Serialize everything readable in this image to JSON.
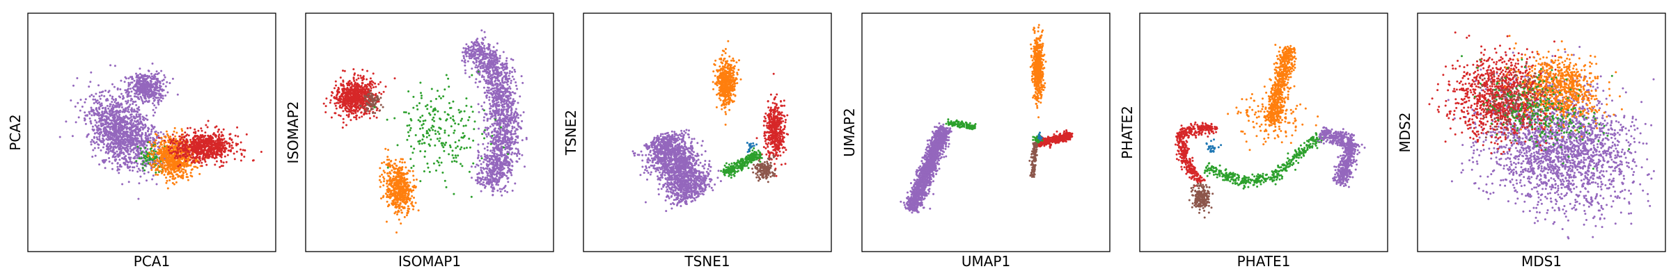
{
  "figure": {
    "colors": {
      "purple": "#9467bd",
      "orange": "#ff7f0e",
      "red": "#d62728",
      "green": "#2ca02c",
      "brown": "#8c564b",
      "blue": "#1f77b4"
    }
  },
  "chart_data": [
    {
      "type": "scatter",
      "xlabel": "PCA1",
      "ylabel": "PCA2",
      "grid": false,
      "ticks": "none",
      "clusters": [
        {
          "color": "purple",
          "shape": "blob",
          "cx": -0.28,
          "cy": 0.0,
          "rx": 0.26,
          "ry": 0.42,
          "angle": 35,
          "n": 1300
        },
        {
          "color": "purple",
          "shape": "blob",
          "cx": -0.05,
          "cy": 0.45,
          "rx": 0.18,
          "ry": 0.16,
          "angle": 0,
          "n": 450
        },
        {
          "color": "green",
          "shape": "blob",
          "cx": 0.0,
          "cy": -0.25,
          "rx": 0.1,
          "ry": 0.12,
          "angle": 0,
          "n": 80
        },
        {
          "color": "orange",
          "shape": "blob",
          "cx": 0.22,
          "cy": -0.25,
          "rx": 0.2,
          "ry": 0.2,
          "angle": 0,
          "n": 700
        },
        {
          "color": "red",
          "shape": "blob",
          "cx": 0.5,
          "cy": -0.15,
          "rx": 0.28,
          "ry": 0.14,
          "angle": 0,
          "n": 750
        }
      ]
    },
    {
      "type": "scatter",
      "xlabel": "ISOMAP1",
      "ylabel": "ISOMAP2",
      "grid": false,
      "ticks": "none",
      "clusters": [
        {
          "color": "purple",
          "shape": "path",
          "points": [
            [
              0.38,
              0.85
            ],
            [
              0.62,
              0.7
            ],
            [
              0.72,
              0.2
            ],
            [
              0.68,
              -0.3
            ],
            [
              0.55,
              -0.55
            ]
          ],
          "width": 0.14,
          "n": 1600
        },
        {
          "color": "red",
          "shape": "blob",
          "cx": -0.72,
          "cy": 0.35,
          "rx": 0.2,
          "ry": 0.18,
          "angle": 0,
          "n": 700
        },
        {
          "color": "brown",
          "shape": "blob",
          "cx": -0.55,
          "cy": 0.3,
          "rx": 0.09,
          "ry": 0.1,
          "angle": 0,
          "n": 80
        },
        {
          "color": "orange",
          "shape": "blob",
          "cx": -0.3,
          "cy": -0.55,
          "rx": 0.12,
          "ry": 0.25,
          "angle": 10,
          "n": 550
        },
        {
          "color": "green",
          "shape": "blob",
          "cx": 0.1,
          "cy": 0.0,
          "rx": 0.45,
          "ry": 0.45,
          "angle": 0,
          "n": 220
        }
      ]
    },
    {
      "type": "scatter",
      "xlabel": "TSNE1",
      "ylabel": "TSNE2",
      "grid": false,
      "ticks": "none",
      "clusters": [
        {
          "color": "purple",
          "shape": "path",
          "points": [
            [
              -0.45,
              -0.05
            ],
            [
              -0.3,
              -0.35
            ],
            [
              -0.1,
              -0.62
            ]
          ],
          "width": 0.2,
          "n": 1600
        },
        {
          "color": "orange",
          "shape": "blob",
          "cx": 0.18,
          "cy": 0.5,
          "rx": 0.09,
          "ry": 0.22,
          "angle": 0,
          "n": 550
        },
        {
          "color": "red",
          "shape": "blob",
          "cx": 0.65,
          "cy": 0.02,
          "rx": 0.09,
          "ry": 0.28,
          "angle": 0,
          "n": 450
        },
        {
          "color": "brown",
          "shape": "blob",
          "cx": 0.55,
          "cy": -0.37,
          "rx": 0.09,
          "ry": 0.1,
          "angle": 0,
          "n": 150
        },
        {
          "color": "green",
          "shape": "path",
          "points": [
            [
              0.15,
              -0.4
            ],
            [
              0.3,
              -0.35
            ],
            [
              0.5,
              -0.2
            ]
          ],
          "width": 0.05,
          "n": 250
        },
        {
          "color": "blue",
          "shape": "blob",
          "cx": 0.42,
          "cy": -0.15,
          "rx": 0.04,
          "ry": 0.05,
          "angle": 0,
          "n": 20
        }
      ]
    },
    {
      "type": "scatter",
      "xlabel": "UMAP1",
      "ylabel": "UMAP2",
      "grid": false,
      "ticks": "none",
      "clusters": [
        {
          "color": "purple",
          "shape": "path",
          "points": [
            [
              -0.4,
              0.05
            ],
            [
              -0.55,
              -0.35
            ],
            [
              -0.72,
              -0.78
            ]
          ],
          "width": 0.07,
          "n": 1500
        },
        {
          "color": "green",
          "shape": "path",
          "points": [
            [
              -0.38,
              0.1
            ],
            [
              -0.1,
              0.05
            ]
          ],
          "width": 0.03,
          "n": 120
        },
        {
          "color": "orange",
          "shape": "blob",
          "cx": 0.5,
          "cy": 0.65,
          "rx": 0.05,
          "ry": 0.3,
          "angle": 0,
          "n": 550
        },
        {
          "color": "red",
          "shape": "path",
          "points": [
            [
              0.5,
              -0.1
            ],
            [
              0.65,
              -0.08
            ],
            [
              0.82,
              -0.02
            ]
          ],
          "width": 0.04,
          "n": 400
        },
        {
          "color": "brown",
          "shape": "path",
          "points": [
            [
              0.48,
              -0.1
            ],
            [
              0.46,
              -0.25
            ],
            [
              0.45,
              -0.45
            ]
          ],
          "width": 0.025,
          "n": 120
        },
        {
          "color": "green",
          "shape": "blob",
          "cx": 0.5,
          "cy": -0.07,
          "rx": 0.04,
          "ry": 0.03,
          "angle": 0,
          "n": 60
        },
        {
          "color": "blue",
          "shape": "blob",
          "cx": 0.52,
          "cy": -0.05,
          "rx": 0.02,
          "ry": 0.03,
          "angle": 0,
          "n": 20
        }
      ]
    },
    {
      "type": "scatter",
      "xlabel": "PHATE1",
      "ylabel": "PHATE2",
      "grid": false,
      "ticks": "none",
      "clusters": [
        {
          "color": "orange",
          "shape": "path",
          "points": [
            [
              0.08,
              0.1
            ],
            [
              0.15,
              0.45
            ],
            [
              0.25,
              0.85
            ]
          ],
          "width": 0.07,
          "n": 600
        },
        {
          "color": "orange",
          "shape": "blob",
          "cx": 0.05,
          "cy": 0.15,
          "rx": 0.3,
          "ry": 0.25,
          "angle": 0,
          "n": 150
        },
        {
          "color": "red",
          "shape": "path",
          "points": [
            [
              -0.45,
              0.05
            ],
            [
              -0.8,
              0.0
            ],
            [
              -0.75,
              -0.3
            ],
            [
              -0.6,
              -0.5
            ]
          ],
          "width": 0.05,
          "n": 450
        },
        {
          "color": "brown",
          "shape": "blob",
          "cx": -0.6,
          "cy": -0.65,
          "rx": 0.08,
          "ry": 0.12,
          "angle": 0,
          "n": 200
        },
        {
          "color": "green",
          "shape": "path",
          "points": [
            [
              -0.55,
              -0.35
            ],
            [
              -0.2,
              -0.5
            ],
            [
              0.1,
              -0.45
            ],
            [
              0.35,
              -0.2
            ],
            [
              0.55,
              -0.05
            ]
          ],
          "width": 0.05,
          "n": 400
        },
        {
          "color": "purple",
          "shape": "path",
          "points": [
            [
              0.55,
              0.0
            ],
            [
              0.85,
              -0.1
            ],
            [
              0.78,
              -0.4
            ],
            [
              0.7,
              -0.5
            ]
          ],
          "width": 0.07,
          "n": 650
        },
        {
          "color": "blue",
          "shape": "blob",
          "cx": -0.5,
          "cy": -0.15,
          "rx": 0.06,
          "ry": 0.06,
          "angle": 0,
          "n": 25
        }
      ]
    },
    {
      "type": "scatter",
      "xlabel": "MDS1",
      "ylabel": "MDS2",
      "grid": false,
      "ticks": "none",
      "clusters": [
        {
          "color": "purple",
          "shape": "blob",
          "cx": 0.18,
          "cy": -0.15,
          "rx": 0.72,
          "ry": 0.58,
          "angle": -25,
          "n": 2100
        },
        {
          "color": "red",
          "shape": "blob",
          "cx": -0.38,
          "cy": 0.35,
          "rx": 0.5,
          "ry": 0.4,
          "angle": 0,
          "n": 1100
        },
        {
          "color": "orange",
          "shape": "blob",
          "cx": 0.18,
          "cy": 0.45,
          "rx": 0.38,
          "ry": 0.3,
          "angle": -25,
          "n": 700
        },
        {
          "color": "brown",
          "shape": "blob",
          "cx": -0.28,
          "cy": 0.3,
          "rx": 0.3,
          "ry": 0.3,
          "angle": 0,
          "n": 150
        },
        {
          "color": "green",
          "shape": "blob",
          "cx": 0.0,
          "cy": 0.2,
          "rx": 0.55,
          "ry": 0.35,
          "angle": -25,
          "n": 250
        }
      ]
    }
  ]
}
